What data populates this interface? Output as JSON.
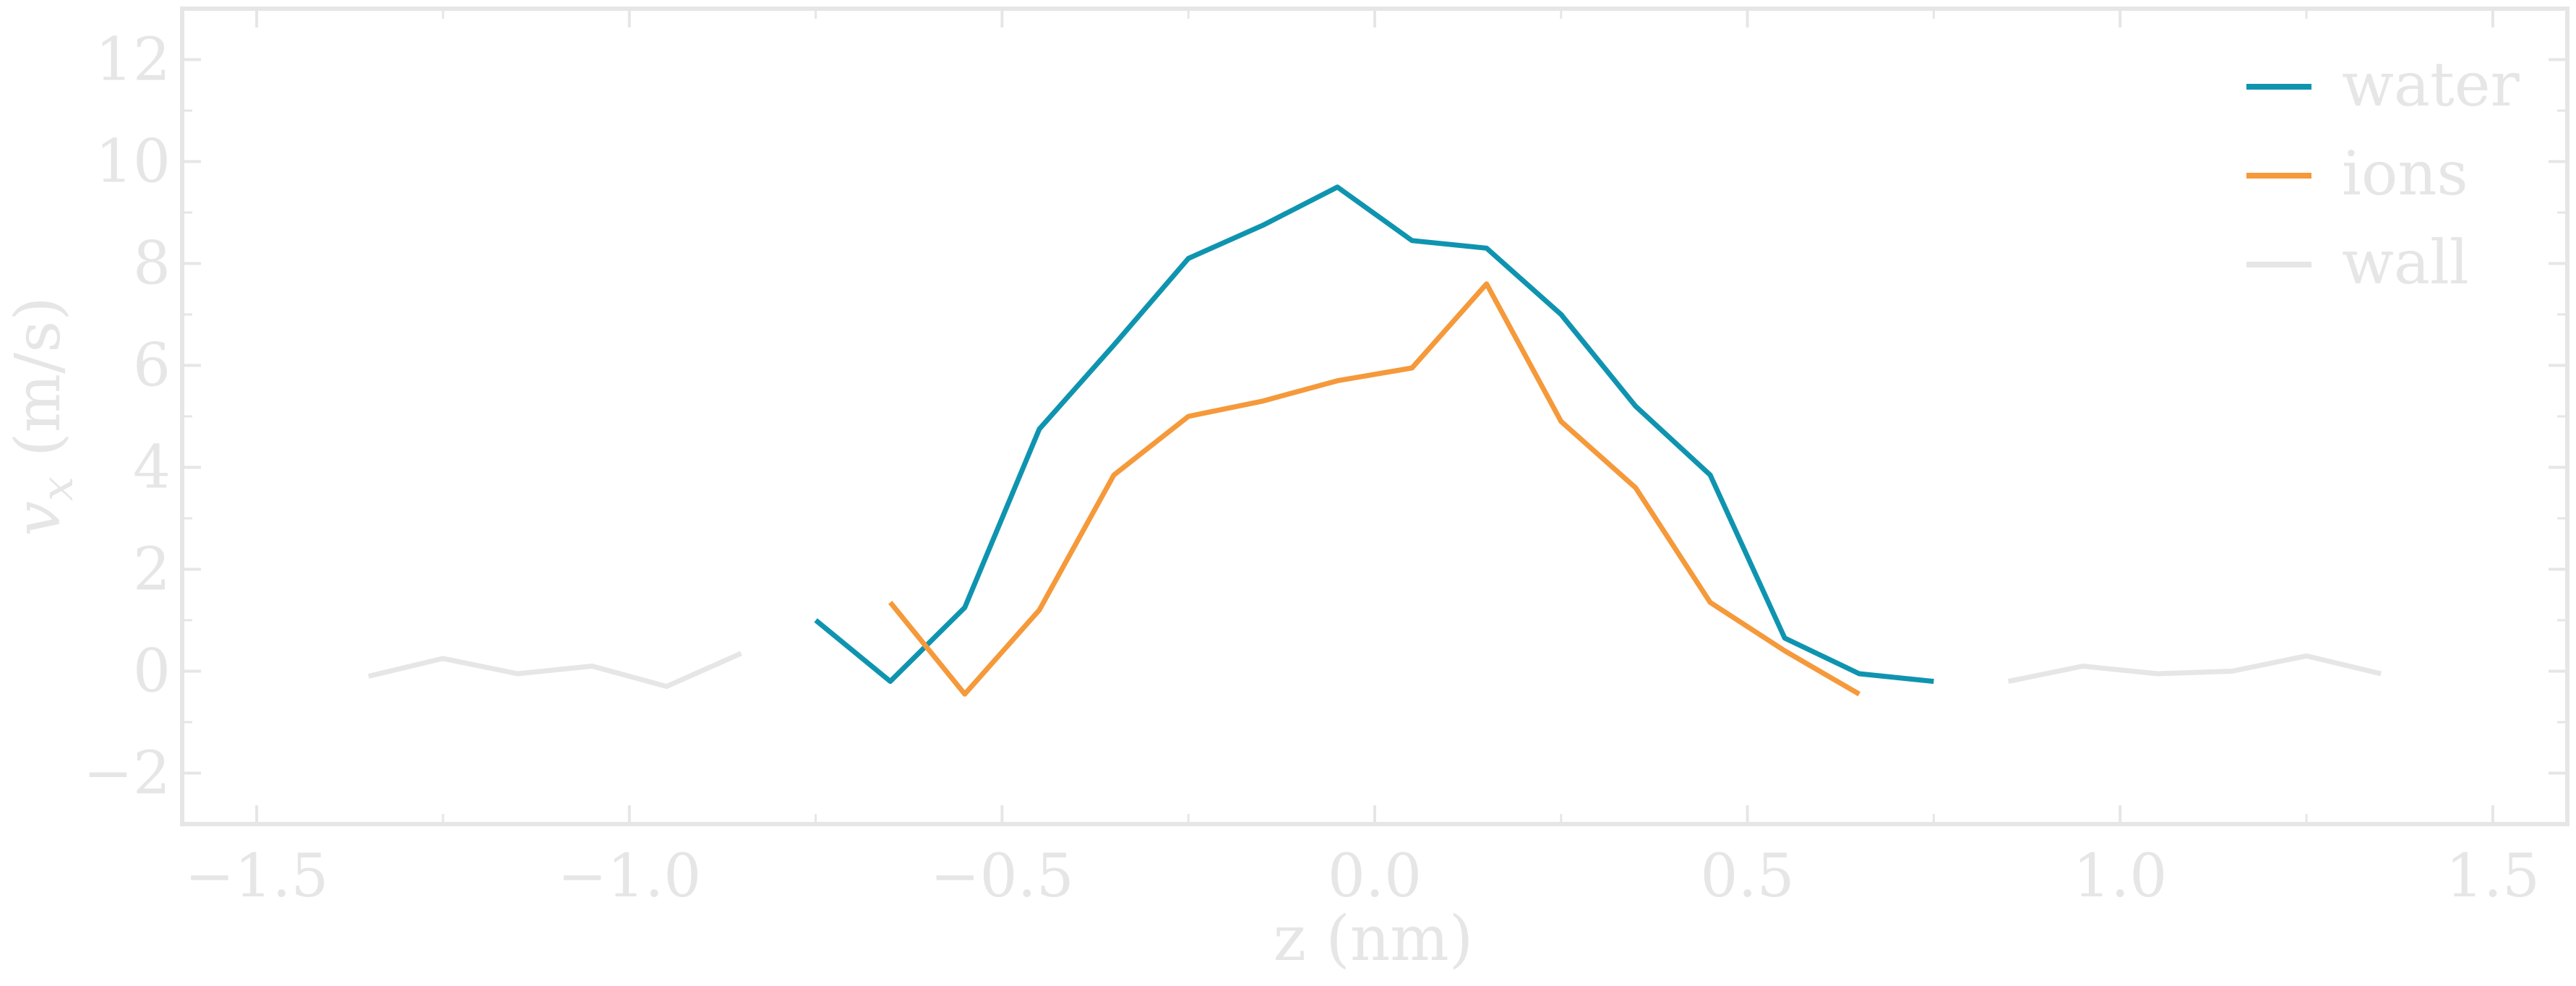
{
  "chart_data": {
    "type": "line",
    "xlabel": "z (nm)",
    "ylabel_var": "v",
    "ylabel_sub": "x",
    "ylabel_unit": " (m/s)",
    "xlim": [
      -1.6,
      1.6
    ],
    "ylim": [
      -3,
      13
    ],
    "xticks": [
      -1.5,
      -1.0,
      -0.5,
      0.0,
      0.5,
      1.0,
      1.5
    ],
    "xtick_labels": [
      "−1.5",
      "−1.0",
      "−0.5",
      "0.0",
      "0.5",
      "1.0",
      "1.5"
    ],
    "yticks": [
      -2,
      0,
      2,
      4,
      6,
      8,
      10,
      12
    ],
    "ytick_labels": [
      "−2",
      "0",
      "2",
      "4",
      "6",
      "8",
      "10",
      "12"
    ],
    "grid": false,
    "legend_position": "top-right",
    "series": [
      {
        "name": "water",
        "color": "#0f94b0",
        "x": [
          -0.75,
          -0.65,
          -0.55,
          -0.45,
          -0.35,
          -0.25,
          -0.15,
          -0.05,
          0.05,
          0.15,
          0.25,
          0.35,
          0.45,
          0.55,
          0.65,
          0.75
        ],
        "y": [
          1.0,
          -0.2,
          1.25,
          4.75,
          6.4,
          8.1,
          8.75,
          9.5,
          8.45,
          8.3,
          7.0,
          5.2,
          3.85,
          0.65,
          -0.05,
          -0.2
        ]
      },
      {
        "name": "ions",
        "color": "#f5993a",
        "x": [
          -0.65,
          -0.55,
          -0.45,
          -0.35,
          -0.25,
          -0.15,
          -0.05,
          0.05,
          0.15,
          0.25,
          0.35,
          0.45,
          0.55,
          0.65
        ],
        "y": [
          1.35,
          -0.45,
          1.2,
          3.85,
          5.0,
          5.3,
          5.7,
          5.95,
          7.6,
          4.9,
          3.6,
          1.35,
          0.4,
          -0.45
        ]
      },
      {
        "name": "wall",
        "color": "#e6e6e6",
        "segments": [
          {
            "x": [
              -1.35,
              -1.25,
              -1.15,
              -1.05,
              -0.95,
              -0.85
            ],
            "y": [
              -0.1,
              0.25,
              -0.05,
              0.1,
              -0.3,
              0.35
            ]
          },
          {
            "x": [
              0.85,
              0.95,
              1.05,
              1.15,
              1.25,
              1.35
            ],
            "y": [
              -0.2,
              0.1,
              -0.05,
              0.0,
              0.3,
              -0.05
            ]
          }
        ]
      }
    ]
  }
}
